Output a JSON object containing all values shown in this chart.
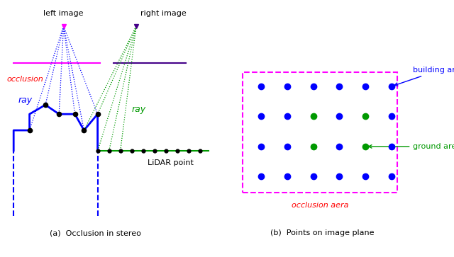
{
  "fig_width": 6.4,
  "fig_height": 3.63,
  "dpi": 100,
  "left_image_label": "left image",
  "right_image_label": "right image",
  "occlusion_label": "occlusion",
  "ray_blue_label": "ray",
  "ray_green_label": "ray",
  "lidar_label": "LiDAR point",
  "caption_a": "(a)  Occlusion in stereo",
  "caption_b": "(b)  Points on image plane",
  "building_area_label": "building area",
  "ground_area_label": "ground area",
  "occlusion_area_label": "occlusion aera",
  "blue_color": "#0000FF",
  "green_color": "#009900",
  "magenta_color": "#FF00FF",
  "dark_purple": "#440088",
  "red_color": "#FF0000",
  "black_color": "#000000"
}
